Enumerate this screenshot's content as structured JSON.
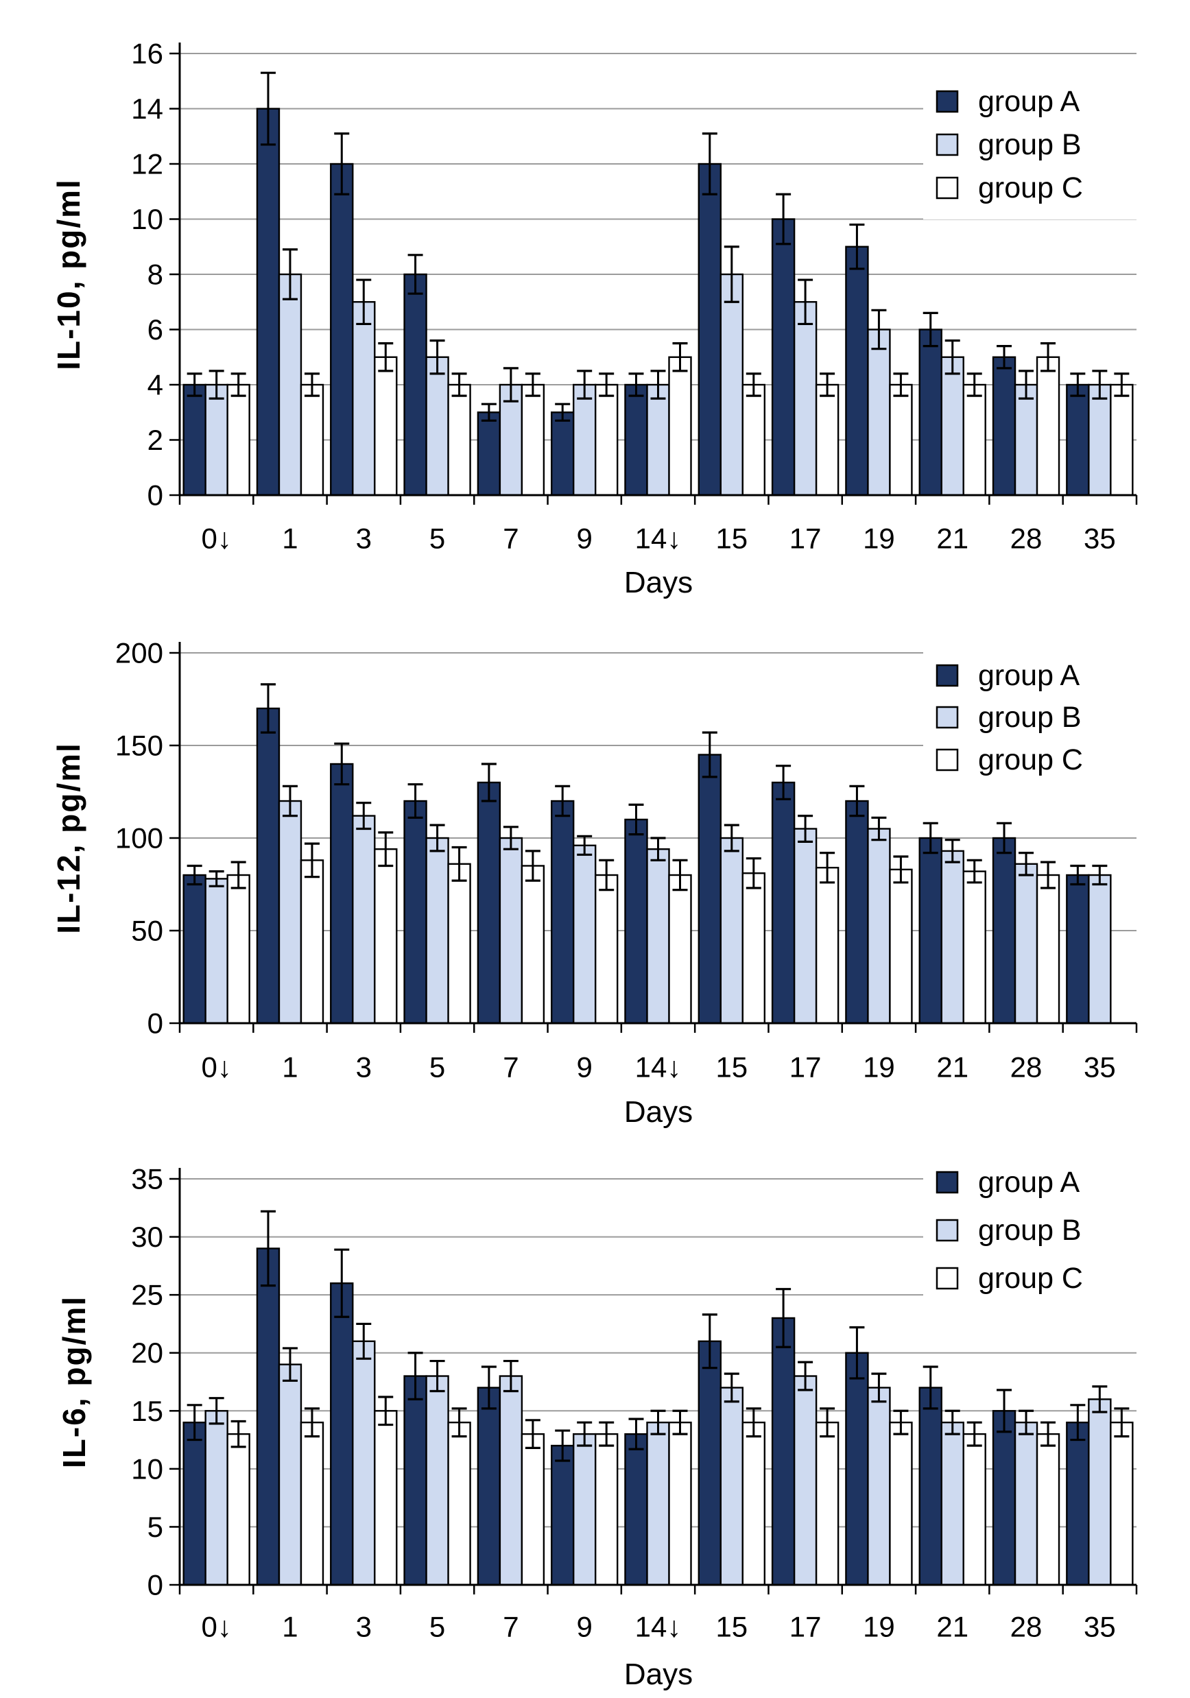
{
  "figure": {
    "background": "#FFFFFF",
    "grid_color": "#9B9B9B",
    "axis_color": "#000000",
    "bar_border_color": "#000000",
    "series_colors": {
      "group_a": "#1E3461",
      "group_b": "#CEDAF0",
      "group_c": "#FFFFFF"
    }
  },
  "chart_data": [
    {
      "type": "bar",
      "title": "",
      "ylabel": "IL-10, pg/ml",
      "xlabel": "Days",
      "ylim": [
        0,
        16
      ],
      "ytick_step": 2,
      "grid": true,
      "legend_position": "top-right",
      "error_bars": true,
      "categories": [
        "0↓",
        "1",
        "3",
        "5",
        "7",
        "9",
        "14↓",
        "15",
        "17",
        "19",
        "21",
        "28",
        "35"
      ],
      "series": [
        {
          "name": "group A",
          "color": "#1E3461",
          "values": [
            4,
            14,
            12,
            8,
            3,
            3,
            4,
            12,
            10,
            9,
            6,
            5,
            4
          ],
          "errors": [
            0.4,
            1.3,
            1.1,
            0.7,
            0.3,
            0.3,
            0.4,
            1.1,
            0.9,
            0.8,
            0.6,
            0.4,
            0.4
          ]
        },
        {
          "name": "group B",
          "color": "#CEDAF0",
          "values": [
            4,
            8,
            7,
            5,
            4,
            4,
            4,
            8,
            7,
            6,
            5,
            4,
            4
          ],
          "errors": [
            0.5,
            0.9,
            0.8,
            0.6,
            0.6,
            0.5,
            0.5,
            1.0,
            0.8,
            0.7,
            0.6,
            0.5,
            0.5
          ]
        },
        {
          "name": "group C",
          "color": "#FFFFFF",
          "values": [
            4,
            4,
            5,
            4,
            4,
            4,
            5,
            4,
            4,
            4,
            4,
            5,
            4
          ],
          "errors": [
            0.4,
            0.4,
            0.5,
            0.4,
            0.4,
            0.4,
            0.5,
            0.4,
            0.4,
            0.4,
            0.4,
            0.5,
            0.4
          ]
        }
      ]
    },
    {
      "type": "bar",
      "title": "",
      "ylabel": "IL-12, pg/ml",
      "xlabel": "Days",
      "ylim": [
        0,
        200
      ],
      "ytick_step": 50,
      "grid": true,
      "legend_position": "top-right",
      "error_bars": true,
      "categories": [
        "0↓",
        "1",
        "3",
        "5",
        "7",
        "9",
        "14↓",
        "15",
        "17",
        "19",
        "21",
        "28",
        "35"
      ],
      "series": [
        {
          "name": "group A",
          "color": "#1E3461",
          "values": [
            80,
            170,
            140,
            120,
            130,
            120,
            110,
            145,
            130,
            120,
            100,
            100,
            80
          ],
          "errors": [
            5,
            13,
            11,
            9,
            10,
            8,
            8,
            12,
            9,
            8,
            8,
            8,
            5
          ]
        },
        {
          "name": "group B",
          "color": "#CEDAF0",
          "values": [
            78,
            120,
            112,
            100,
            100,
            96,
            94,
            100,
            105,
            105,
            93,
            86,
            80
          ],
          "errors": [
            4,
            8,
            7,
            7,
            6,
            5,
            6,
            7,
            7,
            6,
            6,
            6,
            5
          ]
        },
        {
          "name": "group C",
          "color": "#FFFFFF",
          "values": [
            80,
            88,
            94,
            86,
            85,
            80,
            80,
            81,
            84,
            83,
            82,
            80,
            null
          ],
          "errors": [
            7,
            9,
            9,
            9,
            8,
            8,
            8,
            8,
            8,
            7,
            6,
            7,
            null
          ]
        }
      ]
    },
    {
      "type": "bar",
      "title": "",
      "ylabel": "IL-6, pg/ml",
      "xlabel": "Days",
      "ylim": [
        0,
        35
      ],
      "ytick_step": 5,
      "grid": true,
      "legend_position": "top-right",
      "error_bars": true,
      "categories": [
        "0↓",
        "1",
        "3",
        "5",
        "7",
        "9",
        "14↓",
        "15",
        "17",
        "19",
        "21",
        "28",
        "35"
      ],
      "series": [
        {
          "name": "group A",
          "color": "#1E3461",
          "values": [
            14,
            29,
            26,
            18,
            17,
            12,
            13,
            21,
            23,
            20,
            17,
            15,
            14
          ],
          "errors": [
            1.5,
            3.2,
            2.9,
            2.0,
            1.8,
            1.3,
            1.3,
            2.3,
            2.5,
            2.2,
            1.8,
            1.8,
            1.5
          ]
        },
        {
          "name": "group B",
          "color": "#CEDAF0",
          "values": [
            15,
            19,
            21,
            18,
            18,
            13,
            14,
            17,
            18,
            17,
            14,
            14,
            16
          ],
          "errors": [
            1.1,
            1.4,
            1.5,
            1.3,
            1.3,
            1.0,
            1.0,
            1.2,
            1.2,
            1.2,
            1.0,
            1.0,
            1.1
          ]
        },
        {
          "name": "group C",
          "color": "#FFFFFF",
          "values": [
            13,
            14,
            15,
            14,
            13,
            13,
            14,
            14,
            14,
            14,
            13,
            13,
            14
          ],
          "errors": [
            1.1,
            1.2,
            1.2,
            1.2,
            1.2,
            1.0,
            1.0,
            1.2,
            1.2,
            1.0,
            1.0,
            1.0,
            1.2
          ]
        }
      ]
    }
  ]
}
